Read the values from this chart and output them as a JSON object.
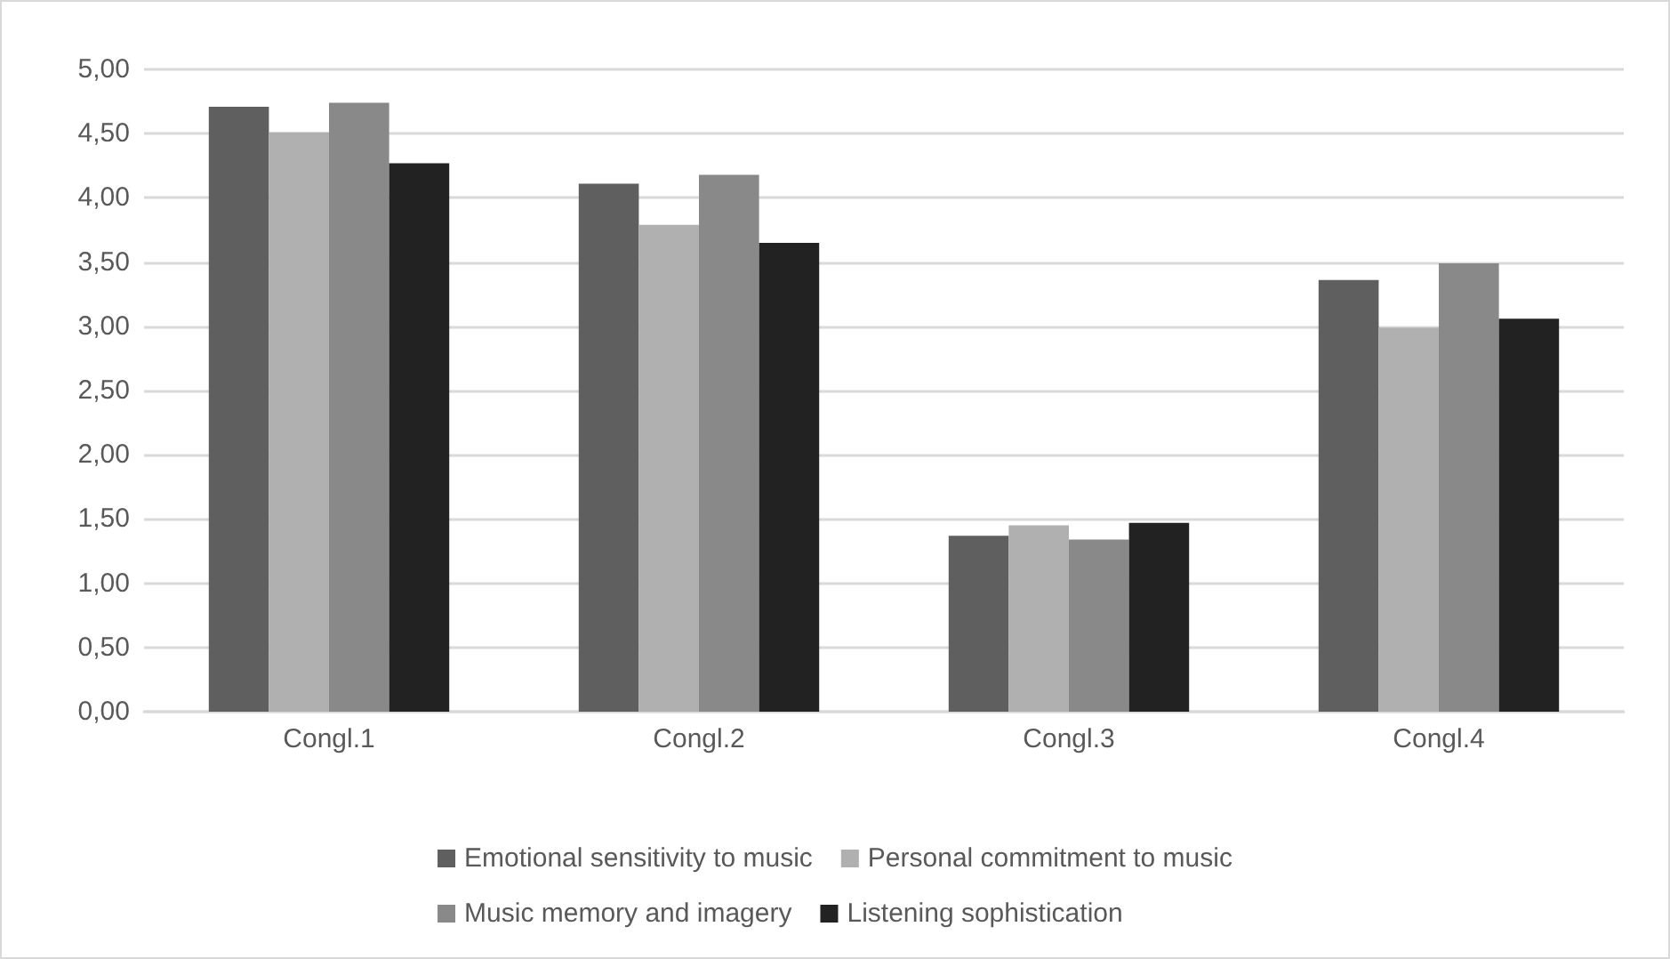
{
  "chart_data": {
    "type": "bar",
    "categories": [
      "Congl.1",
      "Congl.2",
      "Congl.3",
      "Congl.4"
    ],
    "series": [
      {
        "name": "Emotional sensitivity to music",
        "color": "#5f5f5f",
        "values": [
          4.71,
          4.11,
          1.37,
          3.36
        ]
      },
      {
        "name": "Personal commitment to music",
        "color": "#b0b0b0",
        "values": [
          4.51,
          3.79,
          1.45,
          2.99
        ]
      },
      {
        "name": "Music memory and imagery",
        "color": "#898989",
        "values": [
          4.74,
          4.18,
          1.34,
          3.49
        ]
      },
      {
        "name": "Listening sophistication",
        "color": "#222222",
        "values": [
          4.27,
          3.65,
          1.47,
          3.06
        ]
      }
    ],
    "ylim": [
      0,
      5
    ],
    "yticks": [
      {
        "value": 0,
        "label": "0,00"
      },
      {
        "value": 0.5,
        "label": "0,50"
      },
      {
        "value": 1,
        "label": "1,00"
      },
      {
        "value": 1.5,
        "label": "1,50"
      },
      {
        "value": 2,
        "label": "2,00"
      },
      {
        "value": 2.5,
        "label": "2,50"
      },
      {
        "value": 3,
        "label": "3,00"
      },
      {
        "value": 3.5,
        "label": "3,50"
      },
      {
        "value": 4,
        "label": "4,00"
      },
      {
        "value": 4.5,
        "label": "4,50"
      },
      {
        "value": 5,
        "label": "5,00"
      }
    ],
    "grid": "y",
    "legend": "bottom"
  }
}
